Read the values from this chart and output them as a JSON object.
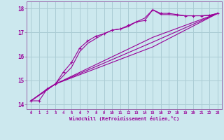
{
  "xlabel": "Windchill (Refroidissement éolien,°C)",
  "background_color": "#cce8ee",
  "grid_color": "#aaccd4",
  "line_color": "#990099",
  "spine_color": "#9966aa",
  "xlim": [
    -0.5,
    23.5
  ],
  "ylim": [
    13.8,
    18.3
  ],
  "xticks": [
    0,
    1,
    2,
    3,
    4,
    5,
    6,
    7,
    8,
    9,
    10,
    11,
    12,
    13,
    14,
    15,
    16,
    17,
    18,
    19,
    20,
    21,
    22,
    23
  ],
  "yticks": [
    14,
    15,
    16,
    17,
    18
  ],
  "series": [
    {
      "x": [
        0,
        1,
        2,
        3,
        4,
        5,
        6,
        7,
        8,
        9,
        10,
        11,
        12,
        13,
        14,
        15,
        16,
        17,
        18,
        19,
        20,
        21,
        22,
        23
      ],
      "y": [
        14.15,
        14.15,
        14.65,
        14.85,
        15.35,
        15.75,
        16.35,
        16.65,
        16.85,
        16.95,
        17.1,
        17.15,
        17.3,
        17.45,
        17.5,
        17.95,
        17.8,
        17.8,
        17.75,
        17.7,
        17.7,
        17.7,
        17.72,
        17.8
      ],
      "has_markers": true
    },
    {
      "x": [
        0,
        2,
        3,
        4,
        5,
        6,
        7,
        8,
        9,
        10,
        11,
        12,
        13,
        14,
        15,
        16,
        17,
        18,
        19,
        20,
        21,
        22,
        23
      ],
      "y": [
        14.15,
        14.65,
        14.85,
        15.2,
        15.55,
        16.2,
        16.55,
        16.75,
        16.95,
        17.1,
        17.15,
        17.25,
        17.45,
        17.6,
        17.95,
        17.75,
        17.75,
        17.72,
        17.7,
        17.7,
        17.7,
        17.72,
        17.8
      ],
      "has_markers": false
    },
    {
      "x": [
        0,
        3,
        15,
        23
      ],
      "y": [
        14.15,
        14.85,
        16.8,
        17.8
      ],
      "has_markers": false
    },
    {
      "x": [
        0,
        3,
        15,
        23
      ],
      "y": [
        14.15,
        14.85,
        16.6,
        17.8
      ],
      "has_markers": false
    },
    {
      "x": [
        0,
        3,
        15,
        23
      ],
      "y": [
        14.15,
        14.85,
        16.4,
        17.8
      ],
      "has_markers": false
    }
  ]
}
